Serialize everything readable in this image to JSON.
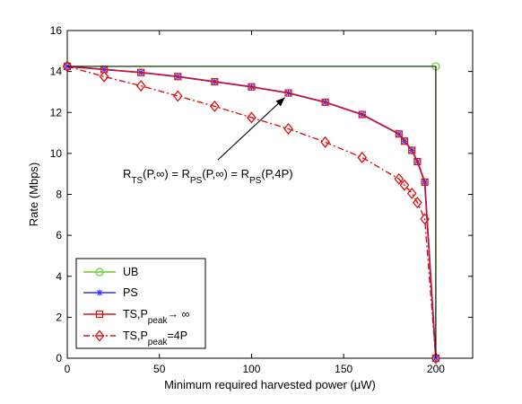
{
  "chart_data": {
    "type": "line",
    "xlabel": "Minimum required harvested power (μW)",
    "ylabel": "Rate (Mbps)",
    "xlim": [
      0,
      220
    ],
    "ylim": [
      0,
      16
    ],
    "xticks": [
      0,
      50,
      100,
      150,
      200
    ],
    "yticks": [
      0,
      2,
      4,
      6,
      8,
      10,
      12,
      14,
      16
    ],
    "grid": false,
    "legend_position": "bottom-left",
    "annotation": {
      "segments": [
        {
          "text": "R",
          "sub": "TS"
        },
        {
          "text": "(P,∞) = R",
          "sub": "PS"
        },
        {
          "text": "(P,∞) = R",
          "sub": "PS"
        },
        {
          "text": "(P,4P)",
          "sub": ""
        }
      ],
      "arrow_to": {
        "x": 120,
        "y": 12.95
      }
    },
    "series": [
      {
        "name": "UB",
        "color": "#66cc33",
        "marker": "circle",
        "dash": "solid",
        "x": [
          0,
          200,
          200
        ],
        "y": [
          14.25,
          14.25,
          0
        ],
        "markers_at": [
          0,
          1
        ]
      },
      {
        "name": "PS",
        "color": "#3333ff",
        "marker": "star",
        "dash": "solid",
        "x": [
          0,
          20,
          40,
          60,
          80,
          100,
          120,
          140,
          160,
          180,
          183,
          187,
          190,
          194,
          200
        ],
        "y": [
          14.25,
          14.1,
          13.95,
          13.75,
          13.5,
          13.25,
          12.95,
          12.5,
          11.9,
          10.95,
          10.6,
          10.15,
          9.6,
          8.6,
          0
        ]
      },
      {
        "name": "TS,P",
        "name_sub": "peak",
        "name_tail": "→ ∞",
        "color": "#dd1111",
        "marker": "square",
        "dash": "solid",
        "x": [
          0,
          20,
          40,
          60,
          80,
          100,
          120,
          140,
          160,
          180,
          183,
          187,
          190,
          194,
          200
        ],
        "y": [
          14.25,
          14.1,
          13.95,
          13.75,
          13.5,
          13.25,
          12.95,
          12.5,
          11.9,
          10.95,
          10.6,
          10.15,
          9.6,
          8.6,
          0
        ]
      },
      {
        "name": "TS,P",
        "name_sub": "peak",
        "name_tail": "=4P",
        "color": "#dd1111",
        "marker": "diamond",
        "dash": "dashdot",
        "x": [
          0,
          20,
          40,
          60,
          80,
          100,
          120,
          140,
          160,
          180,
          183,
          187,
          190,
          194,
          200
        ],
        "y": [
          14.25,
          13.75,
          13.3,
          12.8,
          12.3,
          11.75,
          11.2,
          10.55,
          9.8,
          8.75,
          8.45,
          8.05,
          7.6,
          6.8,
          0
        ]
      }
    ]
  }
}
